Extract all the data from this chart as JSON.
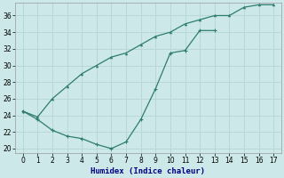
{
  "xlabel": "Humidex (Indice chaleur)",
  "line_color": "#2e7d6e",
  "bg_color": "#cce8e8",
  "grid_color": "#b8d8d8",
  "ylim": [
    19.5,
    37.5
  ],
  "xlim": [
    -0.5,
    17.5
  ],
  "yticks": [
    20,
    22,
    24,
    26,
    28,
    30,
    32,
    34,
    36
  ],
  "xticks": [
    0,
    1,
    2,
    3,
    4,
    5,
    6,
    7,
    8,
    9,
    10,
    11,
    12,
    13,
    14,
    15,
    16,
    17
  ],
  "line1_x": [
    0,
    1,
    2,
    3,
    4,
    5,
    6,
    7,
    8,
    9,
    10,
    11,
    12,
    13,
    14,
    15,
    16,
    17
  ],
  "line1_y": [
    24.5,
    23.8,
    26.0,
    27.5,
    29.0,
    30.0,
    31.0,
    31.5,
    32.5,
    33.5,
    34.0,
    35.0,
    35.5,
    36.0,
    36.0,
    37.0,
    37.3,
    37.3
  ],
  "line2_x": [
    0,
    1,
    2,
    3,
    4,
    5,
    6,
    7,
    8,
    9,
    10,
    11,
    12,
    13
  ],
  "line2_y": [
    24.5,
    23.5,
    22.2,
    21.5,
    21.2,
    20.5,
    20.0,
    20.8,
    23.5,
    27.2,
    31.5,
    31.8,
    34.2,
    34.2
  ]
}
